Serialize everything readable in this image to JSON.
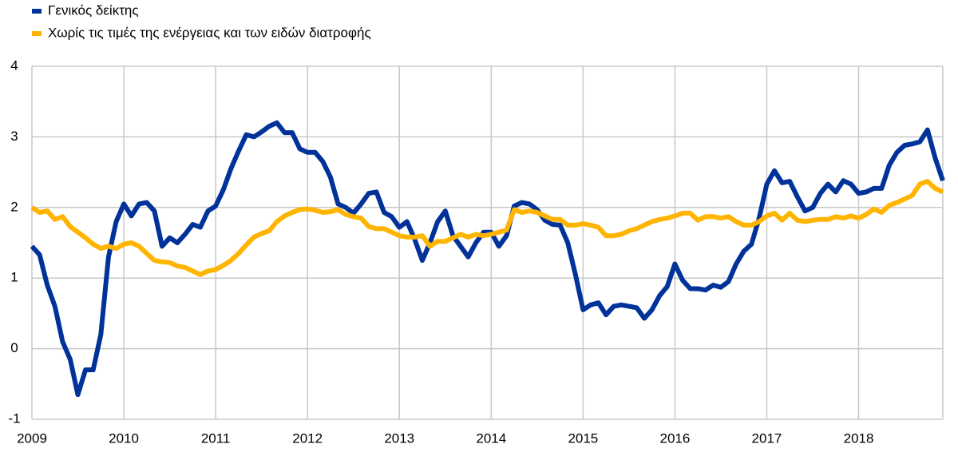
{
  "chart_data": {
    "type": "line",
    "categories": [
      "2009",
      null,
      null,
      null,
      null,
      null,
      null,
      null,
      null,
      null,
      null,
      null,
      "2010",
      null,
      null,
      null,
      null,
      null,
      null,
      null,
      null,
      null,
      null,
      null,
      "2011",
      null,
      null,
      null,
      null,
      null,
      null,
      null,
      null,
      null,
      null,
      null,
      "2012",
      null,
      null,
      null,
      null,
      null,
      null,
      null,
      null,
      null,
      null,
      null,
      "2013",
      null,
      null,
      null,
      null,
      null,
      null,
      null,
      null,
      null,
      null,
      null,
      "2014",
      null,
      null,
      null,
      null,
      null,
      null,
      null,
      null,
      null,
      null,
      null,
      "2015",
      null,
      null,
      null,
      null,
      null,
      null,
      null,
      null,
      null,
      null,
      null,
      "2016",
      null,
      null,
      null,
      null,
      null,
      null,
      null,
      null,
      null,
      null,
      null,
      "2017",
      null,
      null,
      null,
      null,
      null,
      null,
      null,
      null,
      null,
      null,
      null,
      "2018",
      null,
      null,
      null,
      null,
      null,
      null,
      null,
      null,
      null,
      null,
      null
    ],
    "series": [
      {
        "name": "Γενικός δείκτης",
        "color": "#003299",
        "values": [
          1.45,
          1.33,
          0.9,
          0.6,
          0.1,
          -0.15,
          -0.65,
          -0.3,
          -0.3,
          0.2,
          1.3,
          1.8,
          2.05,
          1.88,
          2.05,
          2.07,
          1.95,
          1.45,
          1.57,
          1.5,
          1.62,
          1.76,
          1.72,
          1.95,
          2.02,
          2.25,
          2.55,
          2.8,
          3.03,
          3.0,
          3.07,
          3.15,
          3.2,
          3.06,
          3.06,
          2.83,
          2.78,
          2.78,
          2.65,
          2.43,
          2.05,
          2.0,
          1.92,
          2.05,
          2.2,
          2.22,
          1.93,
          1.87,
          1.72,
          1.8,
          1.55,
          1.25,
          1.5,
          1.8,
          1.95,
          1.6,
          1.45,
          1.3,
          1.5,
          1.65,
          1.65,
          1.45,
          1.6,
          2.02,
          2.07,
          2.05,
          1.97,
          1.82,
          1.76,
          1.75,
          1.5,
          1.05,
          0.55,
          0.62,
          0.65,
          0.48,
          0.6,
          0.62,
          0.6,
          0.58,
          0.43,
          0.55,
          0.75,
          0.88,
          1.2,
          0.97,
          0.85,
          0.85,
          0.83,
          0.9,
          0.87,
          0.95,
          1.2,
          1.38,
          1.48,
          1.85,
          2.33,
          2.52,
          2.35,
          2.37,
          2.15,
          1.95,
          2.0,
          2.2,
          2.33,
          2.22,
          2.38,
          2.33,
          2.2,
          2.22,
          2.27,
          2.27,
          2.6,
          2.78,
          2.88,
          2.9,
          2.93,
          3.1,
          2.7,
          2.38
        ]
      },
      {
        "name": "Χωρίς τις τιμές της ενέργειας και των ειδών διατροφής",
        "color": "#ffb400",
        "values": [
          2.0,
          1.93,
          1.95,
          1.83,
          1.87,
          1.73,
          1.65,
          1.57,
          1.48,
          1.42,
          1.45,
          1.42,
          1.48,
          1.5,
          1.45,
          1.35,
          1.25,
          1.23,
          1.22,
          1.17,
          1.15,
          1.1,
          1.05,
          1.1,
          1.12,
          1.18,
          1.25,
          1.35,
          1.47,
          1.58,
          1.63,
          1.67,
          1.8,
          1.88,
          1.93,
          1.97,
          1.98,
          1.96,
          1.93,
          1.94,
          1.97,
          1.9,
          1.87,
          1.85,
          1.73,
          1.7,
          1.7,
          1.65,
          1.6,
          1.58,
          1.58,
          1.6,
          1.45,
          1.52,
          1.52,
          1.57,
          1.62,
          1.58,
          1.62,
          1.6,
          1.62,
          1.65,
          1.68,
          1.97,
          1.93,
          1.95,
          1.93,
          1.88,
          1.83,
          1.83,
          1.75,
          1.75,
          1.77,
          1.75,
          1.72,
          1.6,
          1.6,
          1.62,
          1.67,
          1.7,
          1.75,
          1.8,
          1.83,
          1.85,
          1.88,
          1.92,
          1.92,
          1.82,
          1.87,
          1.87,
          1.85,
          1.87,
          1.8,
          1.75,
          1.75,
          1.8,
          1.88,
          1.92,
          1.82,
          1.92,
          1.82,
          1.8,
          1.82,
          1.83,
          1.83,
          1.87,
          1.85,
          1.88,
          1.85,
          1.9,
          1.98,
          1.93,
          2.03,
          2.07,
          2.12,
          2.17,
          2.33,
          2.37,
          2.27,
          2.22
        ]
      }
    ],
    "ylim": [
      -1,
      4
    ],
    "yticks": [
      -1,
      0,
      1,
      2,
      3,
      4
    ],
    "grid": true
  }
}
